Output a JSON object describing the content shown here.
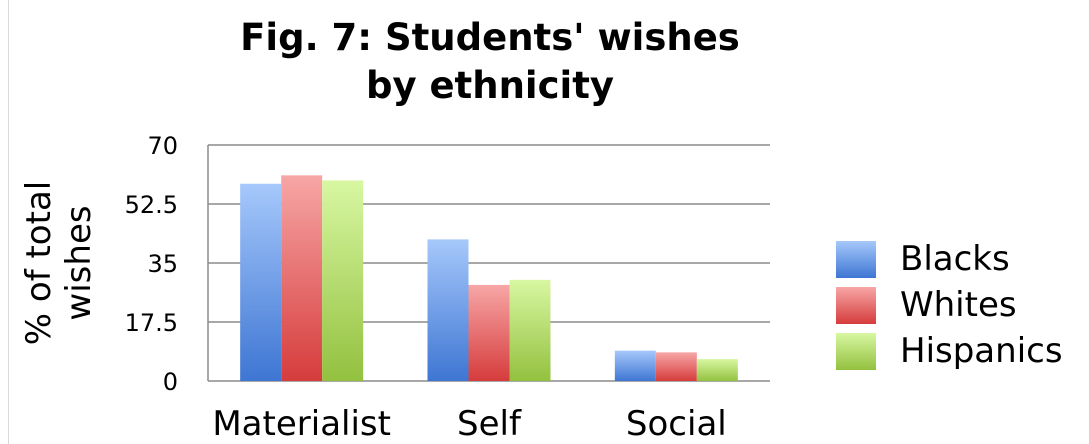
{
  "title_line1": "Fig. 7: Students' wishes",
  "title_line2": "by ethnicity",
  "chart_data": {
    "type": "bar",
    "title": "Fig. 7: Students' wishes by ethnicity",
    "ylabel_line1": "% of total",
    "ylabel_line2": "wishes",
    "xlabel": "",
    "categories": [
      "Materialist",
      "Self",
      "Social"
    ],
    "ylim": [
      0,
      70
    ],
    "yticks": [
      "0",
      "17.5",
      "35",
      "52.5",
      "70"
    ],
    "grid": true,
    "legend_position": "right",
    "series": [
      {
        "name": "Blacks",
        "color": "#4a7fd6",
        "values": [
          58.5,
          42,
          9
        ]
      },
      {
        "name": "Whites",
        "color": "#d94a4a",
        "values": [
          61,
          28.5,
          8.5
        ]
      },
      {
        "name": "Hispanics",
        "color": "#9bc84a",
        "values": [
          59.5,
          30,
          6.5
        ]
      }
    ]
  }
}
